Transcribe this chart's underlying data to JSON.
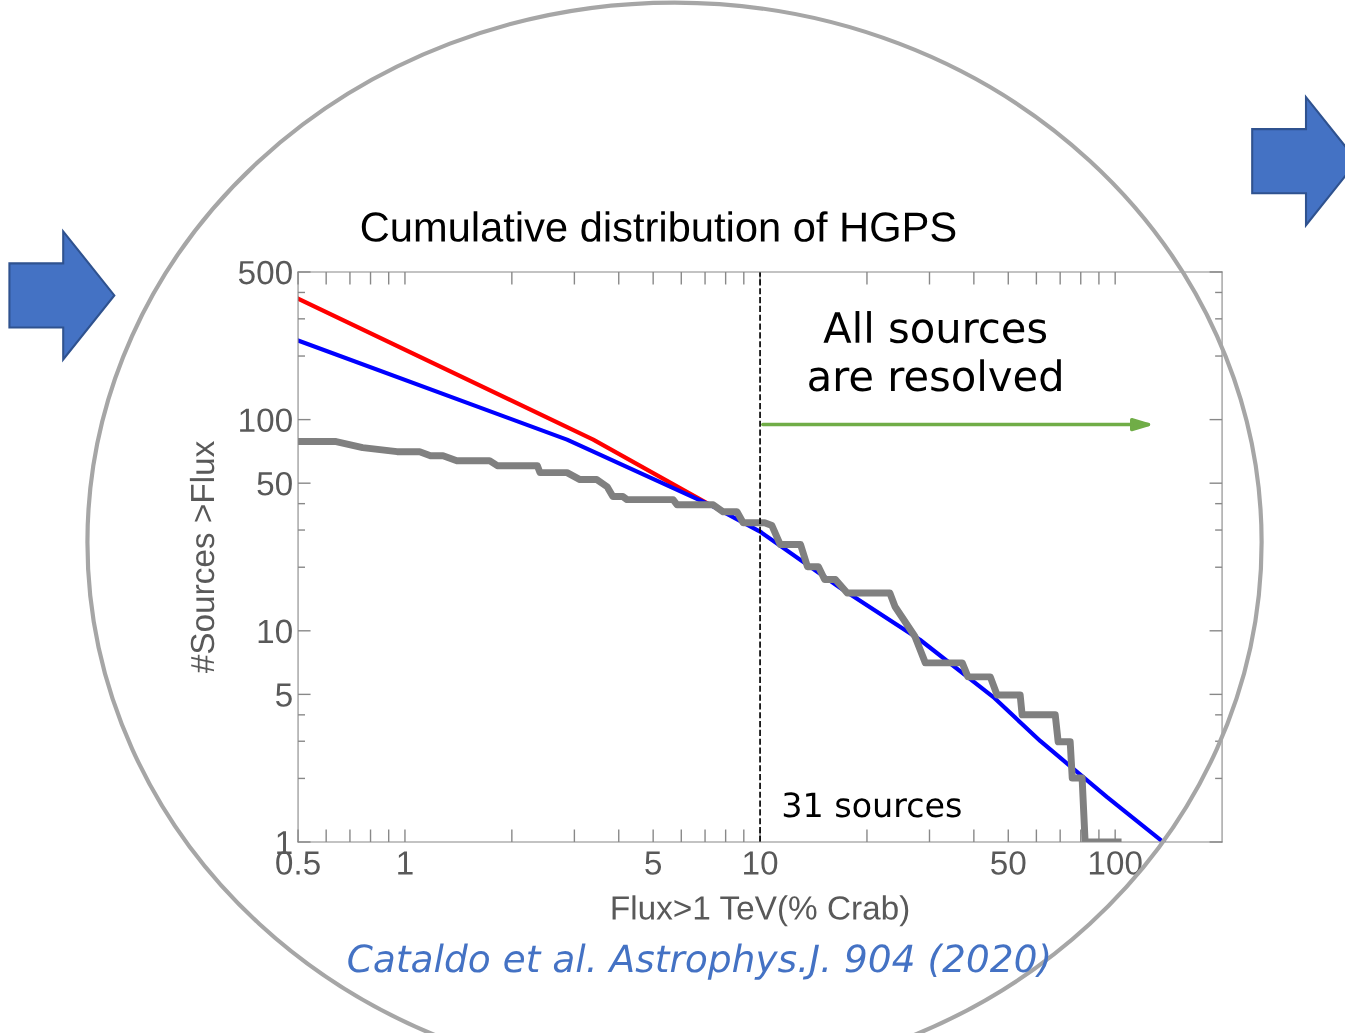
{
  "chart_data": {
    "type": "line",
    "title": "Cumulative distribution of HGPS",
    "xlabel": "Flux>1 TeV(% Crab)",
    "ylabel": "#Sources >Flux",
    "log": "xy",
    "xlim": [
      0.5,
      200
    ],
    "ylim": [
      1,
      500
    ],
    "xticks": [
      0.5,
      {
        "value": 0.6,
        "label": null
      },
      {
        "value": 0.7,
        "label": null
      },
      {
        "value": 0.8,
        "label": null
      },
      {
        "value": 0.9,
        "label": null
      },
      1,
      {
        "value": 2,
        "label": null
      },
      {
        "value": 3,
        "label": null
      },
      {
        "value": 4,
        "label": null
      },
      5,
      {
        "value": 6,
        "label": null
      },
      {
        "value": 7,
        "label": null
      },
      {
        "value": 8,
        "label": null
      },
      {
        "value": 9,
        "label": null
      },
      10,
      {
        "value": 20,
        "label": null
      },
      {
        "value": 30,
        "label": null
      },
      {
        "value": 40,
        "label": null
      },
      50,
      {
        "value": 60,
        "label": null
      },
      {
        "value": 70,
        "label": null
      },
      {
        "value": 80,
        "label": null
      },
      {
        "value": 90,
        "label": null
      },
      100
    ],
    "yticks": [
      1,
      {
        "value": 2,
        "label": null
      },
      {
        "value": 3,
        "label": null
      },
      {
        "value": 4,
        "label": null
      },
      5,
      10,
      {
        "value": 20,
        "label": null
      },
      {
        "value": 30,
        "label": null
      },
      {
        "value": 40,
        "label": null
      },
      50,
      100,
      {
        "value": 200,
        "label": null
      },
      {
        "value": 300,
        "label": null
      },
      {
        "value": 400,
        "label": null
      },
      500
    ],
    "grid": false,
    "series": [
      {
        "color": "#ff0000",
        "x": [
          0.5,
          3.39,
          7.23
        ],
        "values": [
          374,
          80.4,
          39.5
        ]
      },
      {
        "color": "#0000ff",
        "x": [
          0.5,
          2.86,
          7.23,
          10,
          16.8,
          28.2,
          45.3,
          61.5,
          94.9,
          136.5
        ],
        "values": [
          237,
          80.4,
          39.5,
          29.5,
          16.0,
          9.07,
          4.87,
          3.01,
          1.63,
          1
        ]
      },
      {
        "color": "#808080",
        "x": [
          0.5,
          0.64,
          0.76,
          0.95,
          1.1,
          1.18,
          1.28,
          1.4,
          1.73,
          1.82,
          2.36,
          2.4,
          2.86,
          3.11,
          3.47,
          3.71,
          3.85,
          4.11,
          4.22,
          5.69,
          5.84,
          7.38,
          7.87,
          8.61,
          8.96,
          10.3,
          10.8,
          11.4,
          13.0,
          13.6,
          14.6,
          15.2,
          16.3,
          17.6,
          23.2,
          24.0,
          27.3,
          29.2,
          37.1,
          38.5,
          44.5,
          46.5,
          54.0,
          54.7,
          67.8,
          69.1,
          74.7,
          75.7,
          80.7,
          82.3,
          101.9
        ],
        "values": [
          78.7,
          78.7,
          73.7,
          70.5,
          70.5,
          67.5,
          67.5,
          63.9,
          63.9,
          60.5,
          60.5,
          56.1,
          56.1,
          52.0,
          52.0,
          48.1,
          43.2,
          43.2,
          41.8,
          41.8,
          39.5,
          39.5,
          36.6,
          36.6,
          32.5,
          32.5,
          31.5,
          25.6,
          25.6,
          20.1,
          20.1,
          17.5,
          17.5,
          15.1,
          15.1,
          13.0,
          9.4,
          7.05,
          7.05,
          6.05,
          6.05,
          4.97,
          4.97,
          4.0,
          4.0,
          2.98,
          2.98,
          2.01,
          2.01,
          1,
          1
        ]
      }
    ],
    "ref_lines": [
      {
        "axis": "x",
        "value": 10,
        "color": "#000000",
        "line_style": "dashed"
      }
    ],
    "annotations": [
      {
        "text": "All sources\nare resolved",
        "x": 10,
        "y": 94.7
      },
      "31 sources",
      "Cataldo et al. Astrophys.J. 904 (2020)"
    ]
  }
}
